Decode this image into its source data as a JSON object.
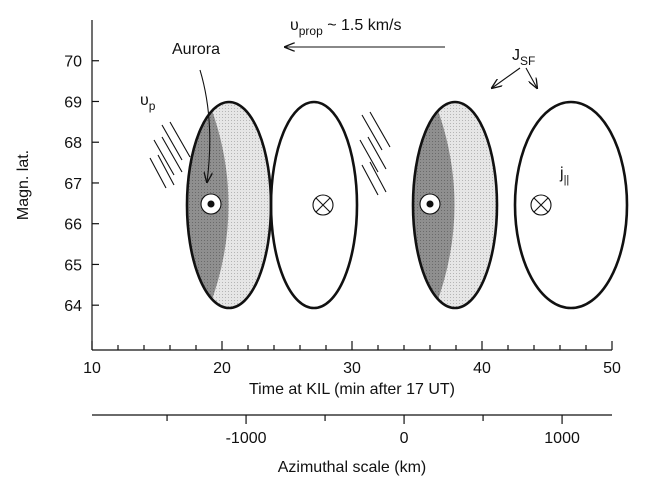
{
  "chart_data": {
    "type": "diagram",
    "annotations": {
      "vprop": {
        "symbol": "υ",
        "sub": "prop",
        "rest": " ~ 1.5 km/s"
      },
      "aurora": "Aurora",
      "jsf": {
        "symbol": "J",
        "sub": "SF"
      },
      "vp": {
        "symbol": "υ",
        "sub": "p"
      },
      "jpar": {
        "symbol": "j",
        "sub": "||"
      }
    },
    "ylabel": "Magn. lat.",
    "xlabel": "Time at KIL (min after 17 UT)",
    "x2label": "Azimuthal scale (km)",
    "xlim": [
      10,
      50
    ],
    "xticks": [
      10,
      20,
      30,
      40,
      50
    ],
    "xminorticks": [
      12,
      14,
      16,
      18,
      22,
      24,
      26,
      28,
      32,
      34,
      36,
      38,
      42,
      44,
      46,
      48
    ],
    "ylim": [
      62.9,
      71
    ],
    "yticks": [
      64,
      65,
      66,
      67,
      68,
      69,
      70
    ],
    "x2lim": [
      -1975,
      1316
    ],
    "x2ticks": [
      -1000,
      0,
      1000
    ],
    "x2minorticks": [
      -1500,
      -500,
      500,
      1500
    ]
  }
}
